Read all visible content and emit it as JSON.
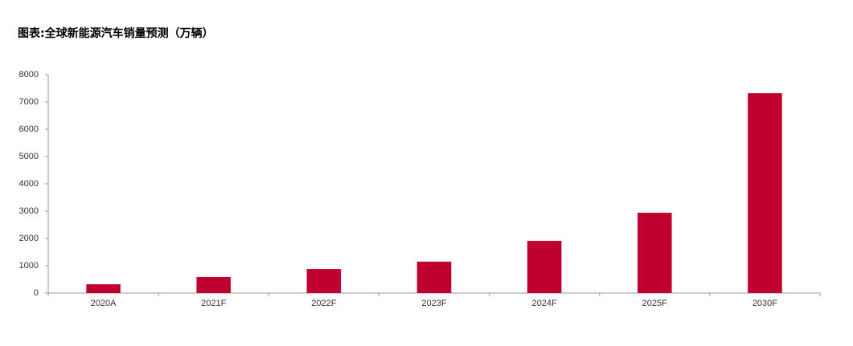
{
  "chart_data": {
    "type": "bar",
    "title": "图表:全球新能源汽车销量预测（万辆）",
    "categories": [
      "2020A",
      "2021F",
      "2022F",
      "2023F",
      "2024F",
      "2025F",
      "2030F"
    ],
    "values": [
      320,
      590,
      880,
      1150,
      1910,
      2940,
      7320
    ],
    "color": "#c0002f",
    "ylim": [
      0,
      8000
    ],
    "yticks": [
      0,
      1000,
      2000,
      3000,
      4000,
      5000,
      6000,
      7000,
      8000
    ],
    "grid": false
  }
}
